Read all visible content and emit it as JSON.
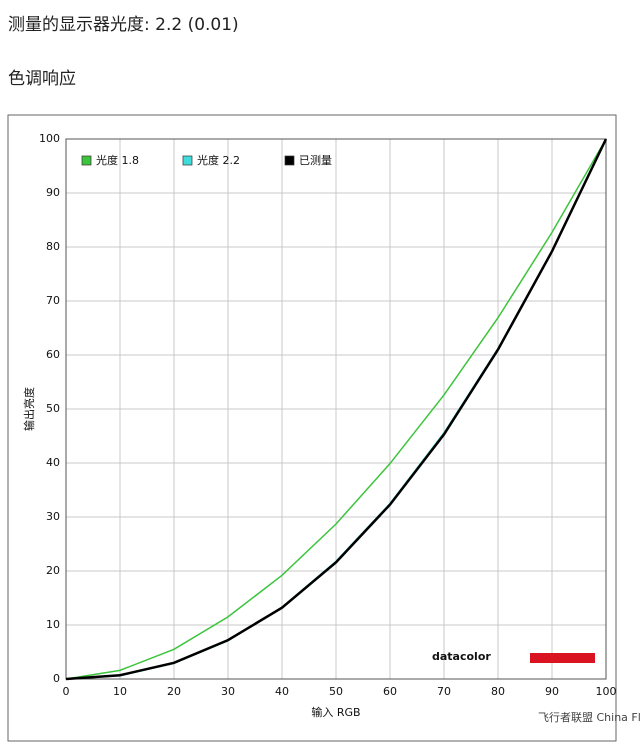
{
  "header": {
    "title": "测量的显示器光度:  2.2 (0.01)",
    "section": "色调响应"
  },
  "chart_data": {
    "type": "line",
    "x_label": "输入 RGB",
    "y_label": "输出亮度",
    "x": [
      0,
      10,
      20,
      30,
      40,
      50,
      60,
      70,
      80,
      90,
      100
    ],
    "series": [
      {
        "name": "光度 1.8",
        "color": "#3cc43c",
        "values": [
          0,
          1.6,
          5.5,
          11.5,
          19.2,
          28.7,
          39.9,
          52.6,
          66.9,
          82.7,
          100
        ]
      },
      {
        "name": "光度 2.2",
        "color": "#3fdcdc",
        "values": [
          0,
          0.6,
          2.9,
          7.1,
          13.3,
          21.8,
          32.5,
          45.6,
          61.2,
          79.3,
          100
        ]
      },
      {
        "name": "已测量",
        "color": "#000000",
        "values": [
          0,
          0.7,
          3.0,
          7.2,
          13.2,
          21.6,
          32.3,
          45.3,
          61.0,
          79.2,
          100
        ]
      }
    ],
    "xlim": [
      0,
      100
    ],
    "ylim": [
      0,
      100
    ],
    "xticks": [
      0,
      10,
      20,
      30,
      40,
      50,
      60,
      70,
      80,
      90,
      100
    ],
    "yticks": [
      0,
      10,
      20,
      30,
      40,
      50,
      60,
      70,
      80,
      90,
      100
    ],
    "grid": true,
    "legend": "top-left",
    "logo": "datacolor",
    "watermark": "飞行者联盟 China Flier"
  }
}
